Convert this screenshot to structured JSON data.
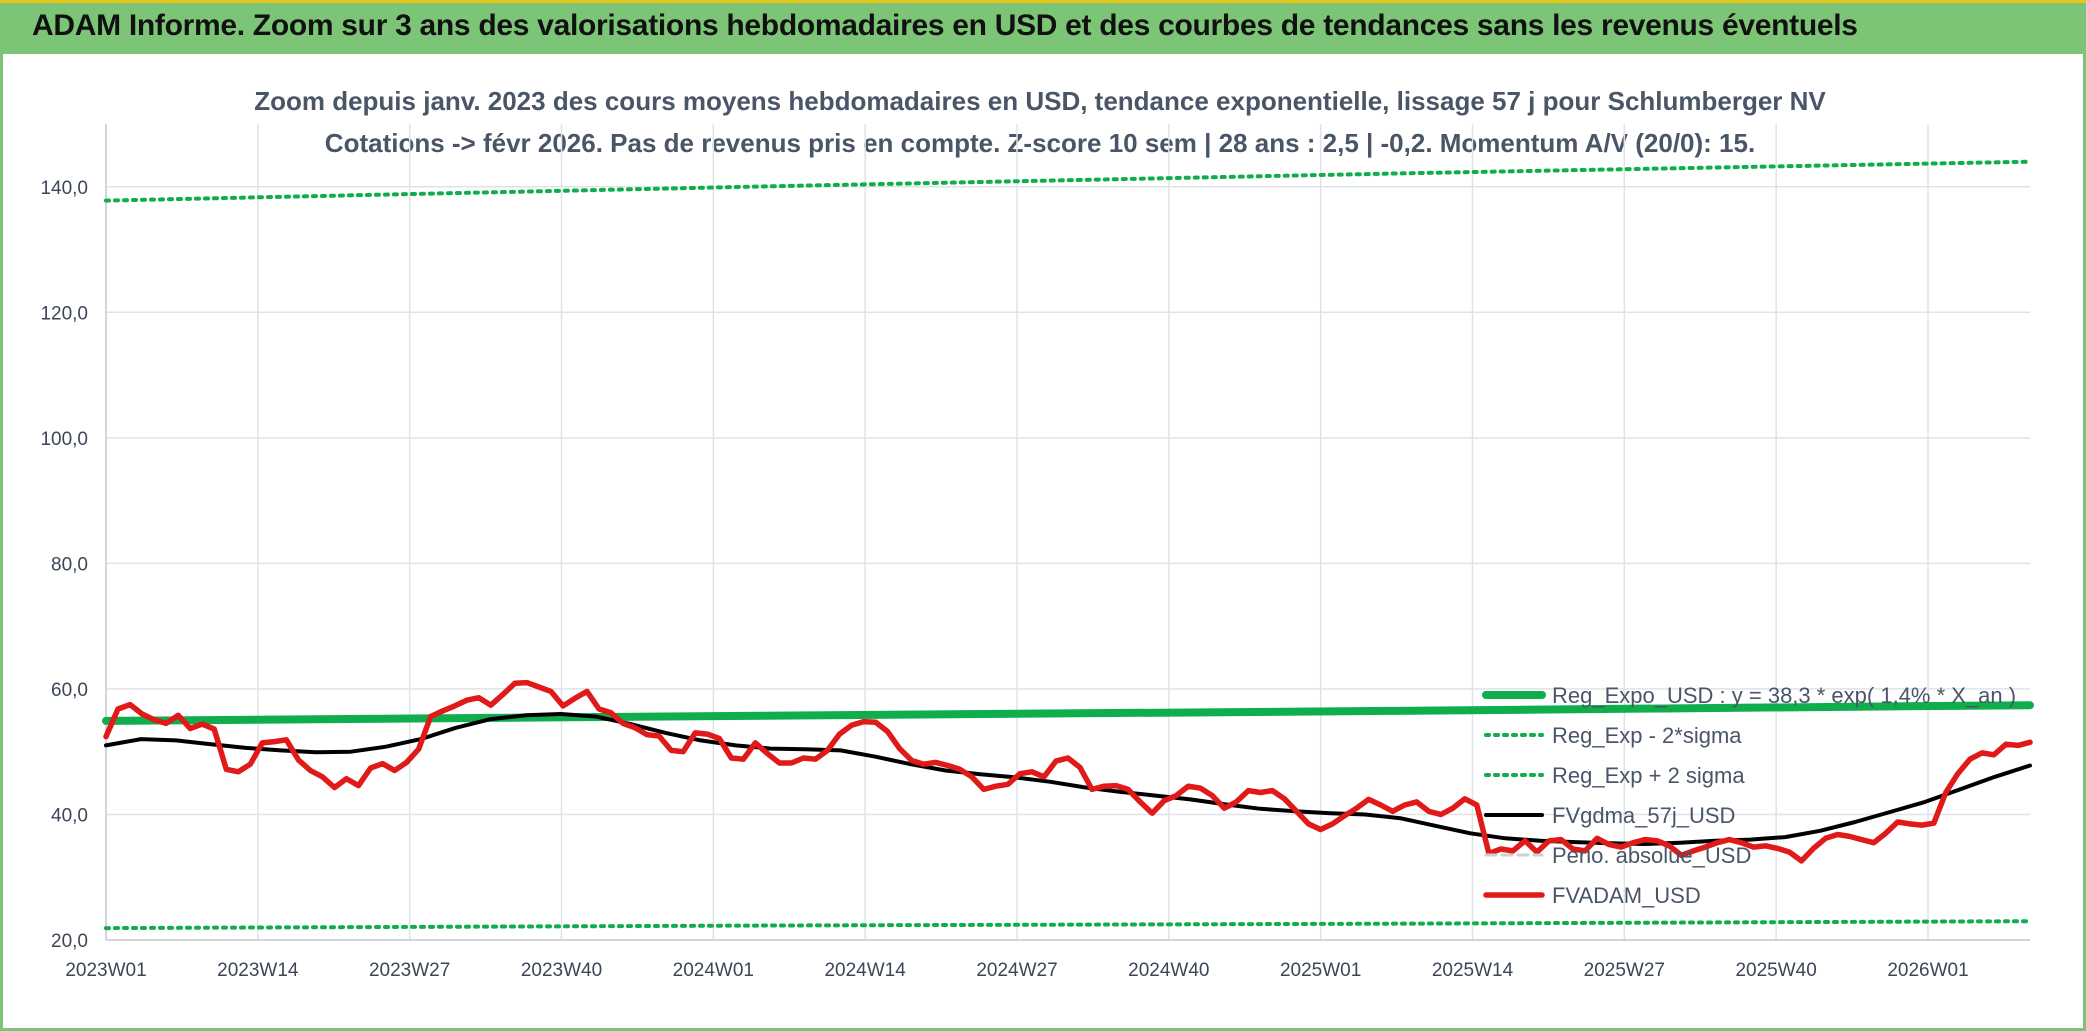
{
  "header": {
    "title": "ADAM Informe. Zoom sur 3 ans des valorisations hebdomadaires en USD et des courbes de tendances sans les revenus éventuels"
  },
  "chart_data": {
    "type": "line",
    "title": "",
    "subtitle_line1": "Zoom depuis janv. 2023 des cours moyens hebdomadaires en USD, tendance exponentielle, lissage 57 j pour Schlumberger NV",
    "subtitle_line2": "Cotations -> févr 2026. Pas de revenus pris en compte. Z-score 10 sem | 28 ans : 2,5 | -0,2. Momentum A/V (20/0): 15.",
    "ylim": [
      20,
      150
    ],
    "yticks": [
      "20,0",
      "40,0",
      "60,0",
      "80,0",
      "100,0",
      "120,0",
      "140,0"
    ],
    "xticks": [
      "2023W01",
      "2023W14",
      "2023W27",
      "2023W40",
      "2024W01",
      "2024W14",
      "2024W27",
      "2024W40",
      "2025W01",
      "2025W14",
      "2025W27",
      "2025W40",
      "2026W01"
    ],
    "grid": true,
    "legend_position": "bottom-right",
    "colors": {
      "trend": "#0fad4b",
      "band": "#0fad4b",
      "ma": "#000000",
      "price": "#e01919",
      "grid": "#dfe3e8"
    },
    "series": [
      {
        "name": "Reg_Expo_USD : y = 38,3 * exp( 1,4% * X_an )",
        "style": "thick",
        "values": [
          54.9,
          55.7,
          56.5,
          57.4
        ]
      },
      {
        "name": "Reg_Exp - 2*sigma",
        "style": "dotted",
        "values": [
          21.9,
          22.3,
          22.6,
          23.0
        ]
      },
      {
        "name": "Reg_Exp + 2 sigma",
        "style": "dotted",
        "values": [
          137.8,
          140.0,
          142.1,
          144.0
        ]
      },
      {
        "name": "FVgdma_57j_USD",
        "style": "solid",
        "values": [
          51.0,
          52.0,
          51.8,
          51.2,
          50.6,
          50.2,
          49.9,
          50.0,
          50.8,
          52.0,
          53.8,
          55.2,
          55.8,
          56.0,
          55.6,
          54.4,
          53.0,
          51.8,
          51.0,
          50.5,
          50.4,
          50.2,
          49.2,
          48.0,
          47.0,
          46.4,
          45.9,
          45.2,
          44.3,
          43.6,
          43.0,
          42.4,
          41.6,
          40.9,
          40.5,
          40.2,
          40.0,
          39.4,
          38.2,
          37.0,
          36.2,
          35.8,
          35.6,
          35.4,
          35.3,
          35.5,
          35.8,
          36.0,
          36.4,
          37.4,
          38.8,
          40.4,
          42.0,
          44.0,
          46.0,
          47.8
        ]
      },
      {
        "name": "Perio. absolue_USD",
        "style": "dashed",
        "values": []
      },
      {
        "name": "FVADAM_USD",
        "style": "solid",
        "values": [
          52.4,
          56.8,
          57.5,
          56.0,
          55.1,
          54.5,
          55.8,
          53.7,
          54.4,
          53.6,
          47.2,
          46.8,
          48.0,
          51.4,
          51.6,
          51.9,
          48.7,
          47.0,
          46.0,
          44.3,
          45.7,
          44.6,
          47.4,
          48.1,
          47.0,
          48.3,
          50.4,
          55.6,
          56.5,
          57.3,
          58.2,
          58.6,
          57.4,
          59.1,
          60.9,
          61.0,
          60.3,
          59.6,
          57.3,
          58.5,
          59.6,
          56.8,
          56.2,
          54.5,
          53.8,
          52.7,
          52.5,
          50.2,
          50.0,
          53.0,
          52.8,
          52.1,
          49.0,
          48.8,
          51.4,
          49.7,
          48.2,
          48.2,
          49.0,
          48.8,
          50.2,
          52.8,
          54.2,
          54.8,
          54.7,
          53.2,
          50.5,
          48.6,
          48.0,
          48.3,
          47.8,
          47.2,
          46.0,
          44.0,
          44.5,
          44.8,
          46.5,
          46.8,
          46.0,
          48.5,
          49.0,
          47.5,
          44.0,
          44.5,
          44.6,
          44.0,
          42.0,
          40.2,
          42.2,
          43.0,
          44.5,
          44.2,
          43.0,
          41.0,
          42.0,
          43.8,
          43.5,
          43.8,
          42.5,
          40.5,
          38.5,
          37.6,
          38.5,
          39.8,
          41.0,
          42.4,
          41.5,
          40.5,
          41.5,
          42.0,
          40.5,
          40.0,
          41.0,
          42.5,
          41.5,
          33.8,
          34.5,
          34.2,
          35.8,
          34.0,
          35.8,
          36.0,
          34.5,
          34.2,
          36.2,
          35.2,
          34.8,
          35.5,
          36.0,
          35.8,
          35.0,
          33.5,
          34.2,
          34.8,
          35.5,
          36.0,
          35.5,
          34.8,
          35.0,
          34.6,
          34.0,
          32.6,
          34.6,
          36.2,
          36.8,
          36.5,
          36.0,
          35.5,
          37.0,
          38.8,
          38.5,
          38.3,
          38.6,
          43.5,
          46.5,
          48.8,
          49.8,
          49.5,
          51.2,
          51.0,
          51.5
        ]
      }
    ]
  }
}
